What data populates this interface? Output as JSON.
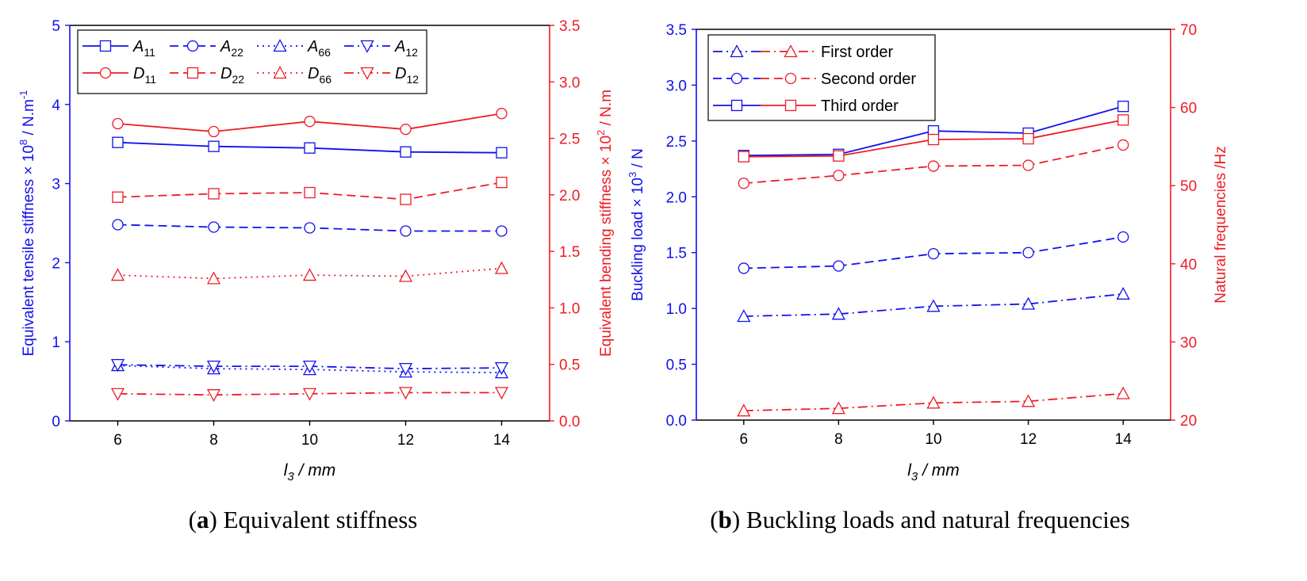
{
  "colors": {
    "blue": "#1010ee",
    "red": "#ee1c24",
    "black": "#000000"
  },
  "charts": [
    {
      "type": "line",
      "caption_letter": "a",
      "caption_text": "Equivalent stiffness",
      "x_tick_labels": [
        "6",
        "8",
        "10",
        "12",
        "14"
      ],
      "xlim": [
        5,
        15
      ],
      "xlabel": {
        "base": "l",
        "sub": "3",
        "rest": " / mm"
      },
      "left_axis": {
        "label": "Equivalent tensile stiffness × 10",
        "sup": "8",
        "unit": " / N.m",
        "unit_sup": "-1",
        "ylim": [
          0,
          5
        ],
        "tick_labels": [
          "0",
          "1",
          "2",
          "3",
          "4",
          "5"
        ]
      },
      "right_axis": {
        "label": "Equivalent bending stiffness × 10",
        "sup": "2",
        "unit": " / N.m",
        "ylim": [
          0,
          3.5
        ],
        "tick_labels": [
          "0.0",
          "0.5",
          "1.0",
          "1.5",
          "2.0",
          "2.5",
          "3.0",
          "3.5"
        ]
      },
      "legend": {
        "placement": "top-left",
        "columns": 4,
        "entries": [
          {
            "base": "A",
            "sub": "11"
          },
          {
            "base": "A",
            "sub": "22"
          },
          {
            "base": "A",
            "sub": "66"
          },
          {
            "base": "A",
            "sub": "12"
          },
          {
            "base": "D",
            "sub": "11"
          },
          {
            "base": "D",
            "sub": "22"
          },
          {
            "base": "D",
            "sub": "66"
          },
          {
            "base": "D",
            "sub": "12"
          }
        ]
      },
      "series": [
        {
          "name": "A11",
          "axis": "left",
          "color": "#1010ee",
          "dash": "solid",
          "marker": "square",
          "x": [
            6,
            8,
            10,
            12,
            14
          ],
          "values": [
            3.52,
            3.47,
            3.45,
            3.4,
            3.39
          ]
        },
        {
          "name": "A22",
          "axis": "left",
          "color": "#1010ee",
          "dash": "dash",
          "marker": "circle",
          "x": [
            6,
            8,
            10,
            12,
            14
          ],
          "values": [
            2.48,
            2.45,
            2.44,
            2.4,
            2.4
          ]
        },
        {
          "name": "A66",
          "axis": "left",
          "color": "#1010ee",
          "dash": "dot",
          "marker": "triangle",
          "x": [
            6,
            8,
            10,
            12,
            14
          ],
          "values": [
            0.7,
            0.66,
            0.65,
            0.62,
            0.61
          ]
        },
        {
          "name": "A12",
          "axis": "left",
          "color": "#1010ee",
          "dash": "dashdot",
          "marker": "invtri",
          "x": [
            6,
            8,
            10,
            12,
            14
          ],
          "values": [
            0.71,
            0.69,
            0.69,
            0.66,
            0.67
          ]
        },
        {
          "name": "D11",
          "axis": "right",
          "color": "#ee1c24",
          "dash": "solid",
          "marker": "circle",
          "x": [
            6,
            8,
            10,
            12,
            14
          ],
          "values": [
            2.63,
            2.56,
            2.65,
            2.58,
            2.72
          ]
        },
        {
          "name": "D22",
          "axis": "right",
          "color": "#ee1c24",
          "dash": "dash",
          "marker": "square",
          "x": [
            6,
            8,
            10,
            12,
            14
          ],
          "values": [
            1.98,
            2.01,
            2.02,
            1.96,
            2.11
          ]
        },
        {
          "name": "D66",
          "axis": "right",
          "color": "#ee1c24",
          "dash": "dot",
          "marker": "triangle",
          "x": [
            6,
            8,
            10,
            12,
            14
          ],
          "values": [
            1.29,
            1.26,
            1.29,
            1.28,
            1.35
          ]
        },
        {
          "name": "D12",
          "axis": "right",
          "color": "#ee1c24",
          "dash": "dashdot",
          "marker": "invtri",
          "x": [
            6,
            8,
            10,
            12,
            14
          ],
          "values": [
            0.24,
            0.23,
            0.24,
            0.25,
            0.25
          ]
        }
      ]
    },
    {
      "type": "line",
      "caption_letter": "b",
      "caption_text": "Buckling loads and natural frequencies",
      "x_tick_labels": [
        "6",
        "8",
        "10",
        "12",
        "14"
      ],
      "xlim": [
        5,
        15
      ],
      "xlabel": {
        "base": "l",
        "sub": "3",
        "rest": " / mm"
      },
      "left_axis": {
        "label": "Buckling load × 10",
        "sup": "3",
        "unit": " / N",
        "unit_sup": "",
        "ylim": [
          0,
          3.5
        ],
        "tick_labels": [
          "0.0",
          "0.5",
          "1.0",
          "1.5",
          "2.0",
          "2.5",
          "3.0",
          "3.5"
        ]
      },
      "right_axis": {
        "label": "Natural frequencies /Hz",
        "sup": "",
        "unit": "",
        "ylim": [
          20,
          70
        ],
        "tick_labels": [
          "20",
          "30",
          "40",
          "50",
          "60",
          "70"
        ]
      },
      "legend": {
        "placement": "top-left",
        "columns": 1,
        "entries": [
          {
            "text": "First order"
          },
          {
            "text": "Second order"
          },
          {
            "text": "Third order"
          }
        ]
      },
      "series": [
        {
          "name": "Buckling first order",
          "axis": "left",
          "color": "#1010ee",
          "dash": "dashdot",
          "marker": "triangle",
          "x": [
            6,
            8,
            10,
            12,
            14
          ],
          "values": [
            0.93,
            0.95,
            1.02,
            1.04,
            1.13
          ]
        },
        {
          "name": "Buckling second order",
          "axis": "left",
          "color": "#1010ee",
          "dash": "dash",
          "marker": "circle",
          "x": [
            6,
            8,
            10,
            12,
            14
          ],
          "values": [
            1.36,
            1.38,
            1.49,
            1.5,
            1.64
          ]
        },
        {
          "name": "Buckling third order",
          "axis": "left",
          "color": "#1010ee",
          "dash": "solid",
          "marker": "square",
          "x": [
            6,
            8,
            10,
            12,
            14
          ],
          "values": [
            2.37,
            2.38,
            2.59,
            2.57,
            2.81
          ]
        },
        {
          "name": "Frequency first order",
          "axis": "right",
          "color": "#ee1c24",
          "dash": "dashdot",
          "marker": "triangle",
          "x": [
            6,
            8,
            10,
            12,
            14
          ],
          "values": [
            21.2,
            21.5,
            22.2,
            22.4,
            23.4
          ]
        },
        {
          "name": "Frequency second order",
          "axis": "right",
          "color": "#ee1c24",
          "dash": "dash",
          "marker": "circle",
          "x": [
            6,
            8,
            10,
            12,
            14
          ],
          "values": [
            50.3,
            51.3,
            52.5,
            52.6,
            55.2
          ]
        },
        {
          "name": "Frequency third order",
          "axis": "right",
          "color": "#ee1c24",
          "dash": "solid",
          "marker": "square",
          "x": [
            6,
            8,
            10,
            12,
            14
          ],
          "values": [
            53.7,
            53.8,
            55.9,
            56.0,
            58.4
          ]
        }
      ]
    }
  ]
}
